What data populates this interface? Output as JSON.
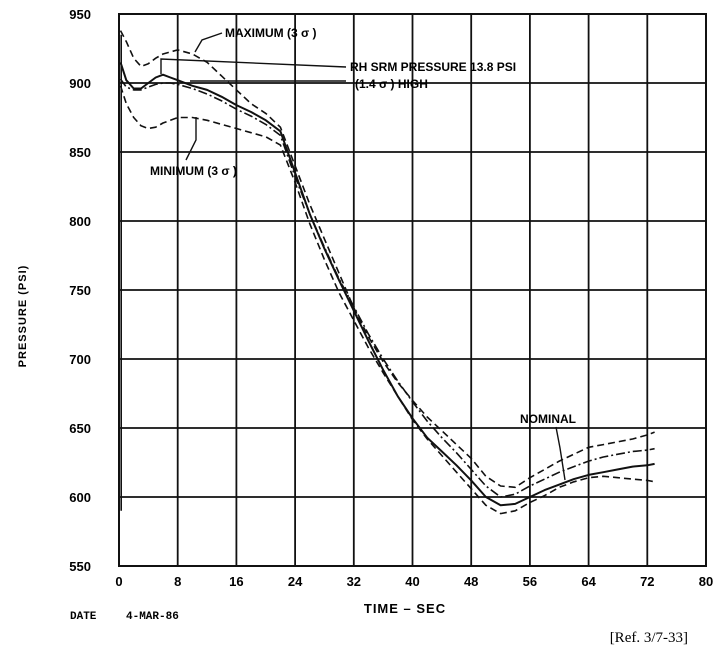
{
  "chart_data": {
    "type": "line",
    "xlabel": "TIME – SEC",
    "ylabel": "PRESSURE (PSI)",
    "xlim": [
      0,
      80
    ],
    "ylim": [
      550,
      950
    ],
    "x_ticks": [
      "0",
      "8",
      "16",
      "24",
      "32",
      "40",
      "48",
      "56",
      "64",
      "72",
      "80"
    ],
    "y_ticks": [
      "550",
      "600",
      "650",
      "700",
      "750",
      "800",
      "850",
      "900",
      "950"
    ],
    "grid": true,
    "annotations": {
      "maximum": "MAXIMUM (3 σ )",
      "minimum": "MINIMUM (3 σ )",
      "rh_line1": "RH SRM PRESSURE 13.8 PSI",
      "rh_line2": "(1.4 σ ) HIGH",
      "nominal": "NOMINAL"
    },
    "series": [
      {
        "key": "maximum",
        "style": "dashed",
        "x": [
          0.2,
          1,
          2,
          3,
          4,
          5,
          6,
          8,
          10,
          12,
          14,
          16,
          18,
          20,
          22,
          24,
          26,
          28,
          30,
          32,
          34,
          36,
          38,
          40,
          42,
          44,
          46,
          48,
          50,
          52,
          54,
          56,
          58,
          60,
          62,
          64,
          66,
          68,
          70,
          72,
          73
        ],
        "y": [
          938,
          930,
          918,
          912,
          914,
          918,
          921,
          924,
          921,
          915,
          905,
          895,
          885,
          878,
          868,
          840,
          812,
          787,
          762,
          737,
          716,
          698,
          683,
          670,
          658,
          648,
          638,
          628,
          615,
          608,
          607,
          614,
          620,
          626,
          631,
          636,
          638,
          640,
          642,
          645,
          647
        ]
      },
      {
        "key": "rh_srm",
        "style": "solid",
        "x": [
          0.2,
          1,
          2,
          3,
          4,
          5,
          6,
          7,
          8,
          10,
          12,
          14,
          16,
          18,
          20,
          22,
          24,
          26,
          28,
          30,
          32,
          34,
          36,
          38,
          40,
          42,
          44,
          46,
          48,
          50,
          52,
          54,
          56,
          58,
          60,
          62,
          64,
          66,
          68,
          70,
          72,
          73
        ],
        "y": [
          915,
          902,
          896,
          896,
          900,
          904,
          906,
          904,
          902,
          898,
          895,
          890,
          884,
          879,
          873,
          865,
          835,
          805,
          780,
          757,
          735,
          713,
          692,
          673,
          657,
          643,
          633,
          623,
          612,
          600,
          594,
          595,
          600,
          605,
          609,
          613,
          616,
          618,
          620,
          622,
          623,
          624
        ]
      },
      {
        "key": "nominal",
        "style": "dashdot",
        "x": [
          0.2,
          1,
          2,
          3,
          4,
          5,
          6,
          7,
          8,
          10,
          12,
          14,
          16,
          18,
          20,
          22,
          24,
          26,
          28,
          30,
          32,
          34,
          36,
          38,
          40,
          42,
          44,
          46,
          48,
          50,
          52,
          54,
          56,
          58,
          60,
          62,
          64,
          66,
          68,
          70,
          72,
          73
        ],
        "y": [
          903,
          897,
          895,
          895,
          897,
          899,
          900,
          900,
          899,
          896,
          892,
          887,
          881,
          876,
          870,
          862,
          832,
          805,
          781,
          758,
          738,
          718,
          700,
          684,
          669,
          655,
          643,
          632,
          620,
          608,
          600,
          602,
          608,
          613,
          618,
          622,
          626,
          629,
          631,
          633,
          634,
          635
        ]
      },
      {
        "key": "minimum",
        "style": "dashed",
        "x": [
          0.2,
          1,
          2,
          3,
          4,
          5,
          6,
          7,
          8,
          10,
          12,
          14,
          16,
          18,
          20,
          22,
          24,
          26,
          28,
          30,
          32,
          34,
          36,
          38,
          40,
          42,
          44,
          46,
          48,
          50,
          52,
          54,
          56,
          58,
          60,
          62,
          64,
          66,
          68,
          70,
          72,
          73
        ],
        "y": [
          898,
          885,
          875,
          869,
          867,
          868,
          871,
          873,
          875,
          875,
          873,
          870,
          867,
          864,
          861,
          855,
          828,
          798,
          772,
          748,
          728,
          708,
          690,
          673,
          656,
          642,
          630,
          618,
          606,
          594,
          588,
          590,
          596,
          601,
          607,
          611,
          614,
          615,
          614,
          613,
          612,
          611
        ]
      }
    ]
  },
  "footer": {
    "date_label": "DATE",
    "date_value": "4-MAR-86",
    "reference": "[Ref. 3/7-33]"
  }
}
